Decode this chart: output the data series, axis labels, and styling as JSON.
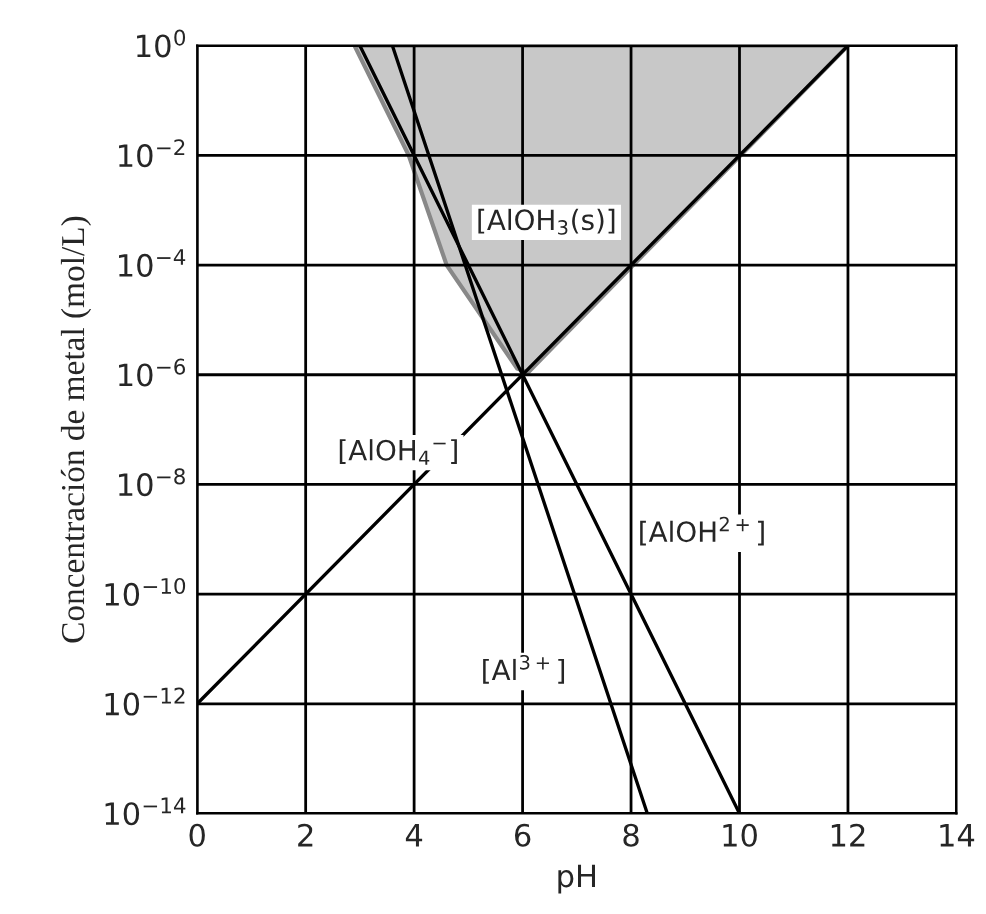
{
  "chart_data": {
    "type": "line",
    "xlabel": "pH",
    "ylabel": "Concentración de metal (mol/L)",
    "log": "y",
    "grid": true,
    "legend": false,
    "marker": "none",
    "line_style": "solid",
    "xlim": [
      0,
      14
    ],
    "xticks": [
      0,
      2,
      4,
      6,
      8,
      10,
      12,
      14
    ],
    "ylim": [
      1e-14,
      1
    ],
    "yticks": [
      {
        "value": 1e-14,
        "label": "10$^{−14}$"
      },
      {
        "value": 1e-12,
        "label": "10$^{−12}$"
      },
      {
        "value": 1e-10,
        "label": "10$^{−10}$"
      },
      {
        "value": 1e-08,
        "label": "10$^{−8}$"
      },
      {
        "value": 1e-06,
        "label": "10$^{−6}$"
      },
      {
        "value": 0.0001,
        "label": "10$^{−4}$"
      },
      {
        "value": 0.01,
        "label": "10$^{−2}$"
      },
      {
        "value": 1,
        "label": "10$^{0}$"
      }
    ],
    "series": [
      {
        "type": "area",
        "name": "[AlOH$_{3}$(s)]",
        "color": "#c8c8c8",
        "x": [
          2.9,
          3.9,
          4.6,
          5.15,
          5.9,
          6.1,
          12
        ],
        "values": [
          1,
          0.01,
          0.0001,
          1.6e-05,
          1.3e-06,
          1.1e-06,
          1
        ]
      },
      {
        "name": "[AlOH$_{4}$$^{−}$]",
        "color": "#000000",
        "x": [
          0,
          12
        ],
        "values": [
          1e-12,
          1
        ]
      },
      {
        "name": "[Al$^{3+}$]",
        "color": "#000000",
        "x": [
          3.6,
          8.3
        ],
        "values": [
          1,
          1e-14
        ]
      },
      {
        "name": "[AlOH$^{2+}$]",
        "color": "#000000",
        "x": [
          3,
          10
        ],
        "values": [
          1,
          1e-14
        ]
      }
    ]
  }
}
